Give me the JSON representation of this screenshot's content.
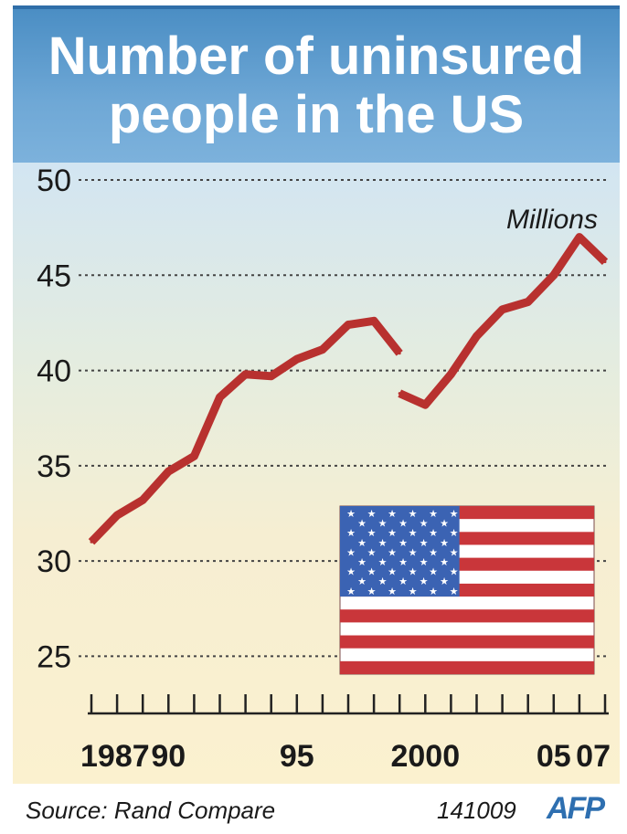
{
  "header": {
    "title_line1": "Number of uninsured",
    "title_line2": "people in the US"
  },
  "chart_data": {
    "type": "line",
    "title": "Number of uninsured people in the US",
    "unit_label": "Millions",
    "xlabel": "",
    "ylabel": "",
    "ylim": [
      22,
      50
    ],
    "yticks": [
      25,
      30,
      35,
      40,
      45,
      50
    ],
    "xlim": [
      1987,
      2007
    ],
    "x_tick_labels": [
      {
        "x": 1987,
        "label": "1987"
      },
      {
        "x": 1990,
        "label": "90"
      },
      {
        "x": 1995,
        "label": "95"
      },
      {
        "x": 2000,
        "label": "2000"
      },
      {
        "x": 2005,
        "label": "05"
      },
      {
        "x": 2007,
        "label": "07"
      }
    ],
    "grid": true,
    "series": [
      {
        "segments": [
          {
            "x": [
              1987,
              1988,
              1989,
              1990,
              1991,
              1992,
              1993,
              1994,
              1995,
              1996,
              1997,
              1998,
              1999
            ],
            "values": [
              31.0,
              32.4,
              33.2,
              34.7,
              35.5,
              38.6,
              39.8,
              39.7,
              40.6,
              41.1,
              42.4,
              42.6,
              40.9
            ]
          },
          {
            "x": [
              1999,
              2000,
              2001,
              2002,
              2003,
              2004,
              2005,
              2006,
              2007
            ],
            "values": [
              38.8,
              38.2,
              39.8,
              41.8,
              43.2,
              43.6,
              45.0,
              47.0,
              45.7
            ]
          }
        ],
        "color": "#b8312f"
      }
    ]
  },
  "footer": {
    "source": "Source: Rand Compare",
    "code": "141009",
    "logo": "AFP"
  },
  "colors": {
    "line": "#b8312f",
    "banner": "#5e9ed0",
    "logo": "#2e6fb0"
  },
  "decor": {
    "flag_icon": "us-flag-icon"
  }
}
